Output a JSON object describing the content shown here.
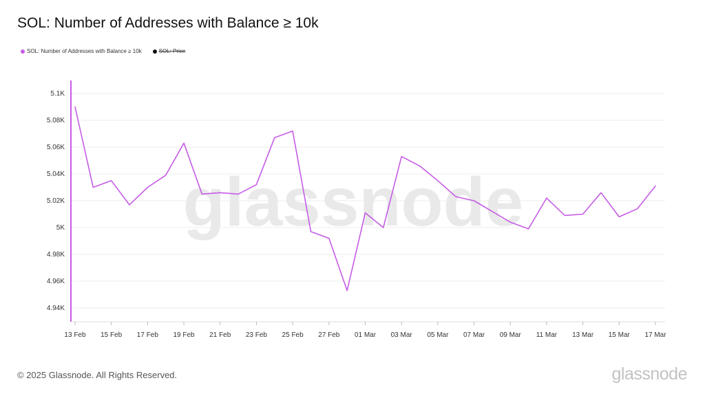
{
  "title": "SOL: Number of Addresses with Balance ≥ 10k",
  "legend": [
    {
      "label": "SOL: Number of Addresses with Balance ≥ 10k",
      "color": "#c65be6",
      "disabled": false
    },
    {
      "label": "SOL: Price",
      "color": "#111111",
      "disabled": true
    }
  ],
  "watermark": "glassnode",
  "footer": {
    "copyright": "© 2025 Glassnode. All Rights Reserved.",
    "logo": "glassnode"
  },
  "colors": {
    "series": "#c65be6",
    "grid": "#ededed",
    "axis_text": "#333333",
    "watermark": "#e8e8e8"
  },
  "chart_data": {
    "type": "line",
    "title": "SOL: Number of Addresses with Balance ≥ 10k",
    "xlabel": "",
    "ylabel": "",
    "ylim": [
      4930,
      5105
    ],
    "yticks": [
      4940,
      4960,
      4980,
      5000,
      5020,
      5040,
      5060,
      5080,
      5100
    ],
    "ytick_labels": [
      "4.94K",
      "4.96K",
      "4.98K",
      "5K",
      "5.02K",
      "5.04K",
      "5.06K",
      "5.08K",
      "5.1K"
    ],
    "xtick_labels": [
      "13 Feb",
      "15 Feb",
      "17 Feb",
      "19 Feb",
      "21 Feb",
      "23 Feb",
      "25 Feb",
      "27 Feb",
      "01 Mar",
      "03 Mar",
      "05 Mar",
      "07 Mar",
      "09 Mar",
      "11 Mar",
      "13 Mar",
      "15 Mar",
      "17 Mar"
    ],
    "grid": true,
    "legend_position": "top-left",
    "series": [
      {
        "name": "SOL: Number of Addresses with Balance ≥ 10k",
        "x": [
          "13 Feb",
          "14 Feb",
          "15 Feb",
          "16 Feb",
          "17 Feb",
          "18 Feb",
          "19 Feb",
          "20 Feb",
          "21 Feb",
          "22 Feb",
          "23 Feb",
          "24 Feb",
          "25 Feb",
          "26 Feb",
          "27 Feb",
          "28 Feb",
          "01 Mar",
          "02 Mar",
          "03 Mar",
          "04 Mar",
          "05 Mar",
          "06 Mar",
          "07 Mar",
          "08 Mar",
          "09 Mar",
          "10 Mar",
          "11 Mar",
          "12 Mar",
          "13 Mar",
          "14 Mar",
          "15 Mar",
          "16 Mar",
          "17 Mar"
        ],
        "values": [
          5090,
          5030,
          5035,
          5017,
          5030,
          5039,
          5063,
          5025,
          5026,
          5025,
          5032,
          5067,
          5072,
          4997,
          4992,
          4953,
          5011,
          5000,
          5053,
          5046,
          5035,
          5023,
          5020,
          5012,
          5004,
          4999,
          5022,
          5009,
          5010,
          5026,
          5008,
          5014,
          5031
        ]
      }
    ]
  }
}
